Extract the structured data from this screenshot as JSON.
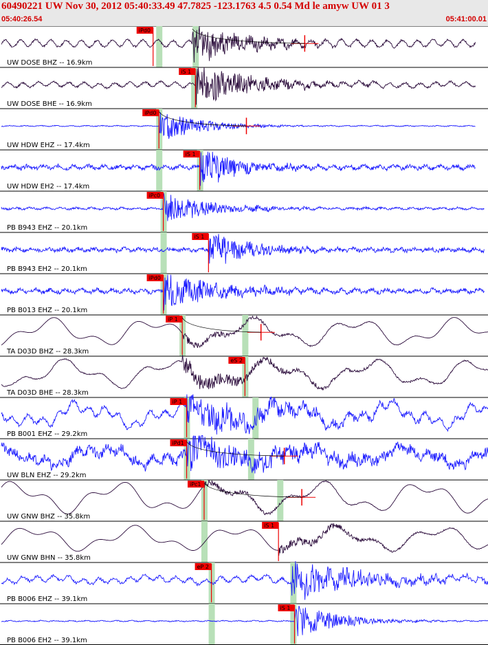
{
  "header": {
    "title": "60490221 UW Nov 30, 2012 05:40:33.49   47.7825 -123.1763  4.5 0.54 Md le amyw UW 01   3",
    "time_start": "05:40:26.54",
    "time_end": "05:41:00.01"
  },
  "colors": {
    "title": "#d40000",
    "header_bg": "#e8e8e8",
    "trace_blue": "#1a1aff",
    "trace_black": "#2a0a3a",
    "pick_bg": "#ee0000",
    "pick_window": "#b8e0b8",
    "fit_curve": "#000000"
  },
  "chart_data": {
    "type": "line",
    "title": "60490221 UW Nov 30, 2012 05:40:33.49   47.7825 -123.1763  4.5 0.54 Md le amyw UW 01   3",
    "x_unit": "time (UTC)",
    "xlim": [
      "05:40:26.54",
      "05:41:00.01"
    ],
    "traces": [
      {
        "label": "UW DOSE BHZ -- 16.9km",
        "color": "black",
        "pick": "iPd0",
        "pick_time": 10.5,
        "window": 10.9,
        "window2": 13.4,
        "onset": 13.2,
        "amp": 9,
        "noise": 0.1,
        "base": 0.45,
        "slow": 0.045,
        "coda": 3.5,
        "xmax": 32.6,
        "ampmark": 20.9,
        "seed": 11
      },
      {
        "label": "UW DOSE BHE -- 16.9km",
        "color": "black",
        "pick": "iS 1",
        "pick_time": 13.4,
        "window": 13.3,
        "onset": 13.4,
        "amp": 9,
        "noise": 0.1,
        "base": 0.3,
        "slow": 0.07,
        "coda": 4,
        "xmax": 32.6,
        "seed": 12
      },
      {
        "label": "UW HDW EHZ -- 17.4km",
        "color": "blue",
        "pick": "iPd0",
        "pick_time": 10.9,
        "window": 10.9,
        "onset": 10.9,
        "amp": 7,
        "noise": 0.04,
        "base": 0.05,
        "slow": 0,
        "coda": 3,
        "xmax": 32.6,
        "ampmark": 16.9,
        "seed": 13
      },
      {
        "label": "UW HDW EH2 -- 17.4km",
        "color": "blue",
        "pick": "iS 1",
        "pick_time": 13.7,
        "window": 10.9,
        "window2": 13.7,
        "onset": 13.7,
        "amp": 9,
        "noise": 0.2,
        "base": 0.2,
        "slow": 0,
        "coda": 2.5,
        "xmax": 32.6,
        "seed": 14
      },
      {
        "label": "PB B943 EHZ -- 20.1km",
        "color": "blue",
        "pick": "iPc0",
        "pick_time": 11.2,
        "window": 11.2,
        "onset": 11.2,
        "amp": 7,
        "noise": 0.1,
        "base": 0.1,
        "slow": 0,
        "coda": 3.5,
        "xmax": 33.2,
        "seed": 15
      },
      {
        "label": "PB B943 EH2 -- 20.1km",
        "color": "blue",
        "pick": "iS 1",
        "pick_time": 14.3,
        "window": 11.2,
        "onset": 14.3,
        "amp": 8,
        "noise": 0.2,
        "base": 0.15,
        "slow": 0,
        "coda": 3,
        "xmax": 33.2,
        "seed": 16
      },
      {
        "label": "PB B013 EHZ -- 20.1km",
        "color": "blue",
        "pick": "iPd0",
        "pick_time": 11.2,
        "window": 11.2,
        "onset": 11.2,
        "amp": 8,
        "noise": 0.2,
        "base": 0.2,
        "slow": 0,
        "coda": 4,
        "xmax": 33.2,
        "seed": 17
      },
      {
        "label": "TA D03D BHZ -- 28.3km",
        "color": "black",
        "pick": "iP 1",
        "pick_time": 12.5,
        "window": 12.5,
        "window2": 16.8,
        "onset": 12.5,
        "amp": 2,
        "noise": 0,
        "base": 0,
        "slow": 0.9,
        "coda": 5,
        "xmax": 34.5,
        "ampmark": 17.9,
        "seed": 18
      },
      {
        "label": "TA D03D BHE -- 28.3km",
        "color": "black",
        "pick": "eS 2",
        "pick_time": 16.8,
        "window": 16.8,
        "onset": 12.5,
        "amp": 4,
        "noise": 0.05,
        "base": 0.05,
        "slow": 0.9,
        "coda": 6,
        "xmax": 34.5,
        "seed": 19
      },
      {
        "label": "PB B001 EHZ -- 29.2km",
        "color": "blue",
        "pick": "iP 1",
        "pick_time": 12.8,
        "window": 12.8,
        "window2": 17.5,
        "onset": 12.8,
        "amp": 7,
        "noise": 0.2,
        "base": 0.55,
        "slow": 0.7,
        "coda": 7,
        "xmax": 34.8,
        "seed": 20
      },
      {
        "label": "UW BLN EHZ -- 29.2km",
        "color": "blue",
        "pick": "iPd1",
        "pick_time": 12.8,
        "window": 12.8,
        "window2": 17.2,
        "onset": 12.8,
        "amp": 8,
        "noise": 0.5,
        "base": 0.4,
        "slow": 0.6,
        "coda": 6,
        "xmax": 34.8,
        "ampmark": 19.5,
        "seed": 21
      },
      {
        "label": "UW GNW BHZ -- 35.8km",
        "color": "black",
        "pick": "iPc1",
        "pick_time": 14.0,
        "window": 14.0,
        "window2": 19.2,
        "onset": 14.0,
        "amp": 1.5,
        "noise": 0,
        "base": 0,
        "slow": 1.0,
        "coda": 5,
        "xmax": 35.7,
        "ampmark": 20.7,
        "seed": 22
      },
      {
        "label": "UW GNW BHN -- 35.8km",
        "color": "black",
        "pick": "iS 1",
        "pick_time": 19.1,
        "window": 14.0,
        "onset": 19.1,
        "amp": 2.5,
        "noise": 0,
        "base": 0,
        "slow": 0.8,
        "coda": 5,
        "xmax": 35.7,
        "seed": 23
      },
      {
        "label": "PB B006 EHZ -- 39.1km",
        "color": "blue",
        "pick": "eP 2",
        "pick_time": 14.5,
        "window": 14.5,
        "window2": 20.1,
        "onset": 20.0,
        "amp": 9,
        "noise": 0.15,
        "base": 0.35,
        "slow": 0.15,
        "coda": 5,
        "xmax": 36.4,
        "seed": 24
      },
      {
        "label": "PB B006 EH2 -- 39.1km",
        "color": "blue",
        "pick": "iS 1",
        "pick_time": 20.2,
        "window": 14.5,
        "window2": 20.1,
        "onset": 20.2,
        "amp": 8,
        "noise": 0.05,
        "base": 0.05,
        "slow": 0,
        "coda": 3,
        "xmax": 36.4,
        "seed": 25
      }
    ]
  }
}
